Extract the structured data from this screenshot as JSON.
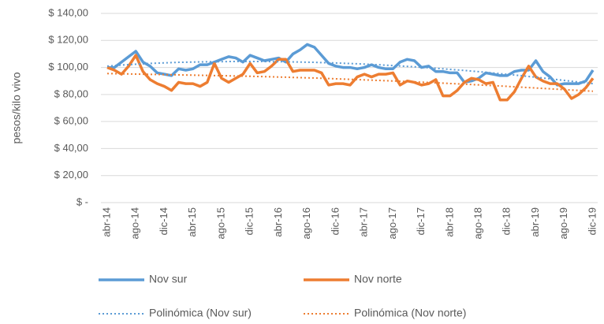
{
  "chart_data": {
    "type": "line",
    "y_label": "pesos/kilo vivo",
    "categories": [
      "abr-14",
      null,
      null,
      null,
      "ago-14",
      null,
      null,
      null,
      "dic-14",
      null,
      null,
      null,
      "abr-15",
      null,
      null,
      null,
      "ago-15",
      null,
      null,
      null,
      "dic-15",
      null,
      null,
      null,
      "abr-16",
      null,
      null,
      null,
      "ago-16",
      null,
      null,
      null,
      "dic-16",
      null,
      null,
      null,
      "abr-17",
      null,
      null,
      null,
      "ago-17",
      null,
      null,
      null,
      "dic-17",
      null,
      null,
      null,
      "abr-18",
      null,
      null,
      null,
      "ago-18",
      null,
      null,
      null,
      "dic-18",
      null,
      null,
      null,
      "abr-19",
      null,
      null,
      null,
      "ago-19",
      null,
      null,
      null,
      "dic-19"
    ],
    "ylim": [
      0,
      140
    ],
    "yticks": [
      {
        "value": 0,
        "label": "$ -"
      },
      {
        "value": 20,
        "label": "$ 20,00"
      },
      {
        "value": 40,
        "label": "$ 40,00"
      },
      {
        "value": 60,
        "label": "$ 60,00"
      },
      {
        "value": 80,
        "label": "$ 80,00"
      },
      {
        "value": 100,
        "label": "$ 100,00"
      },
      {
        "value": 120,
        "label": "$ 120,00"
      },
      {
        "value": 140,
        "label": "$ 140,00"
      }
    ],
    "grid": true,
    "legend": "bottom",
    "series": [
      {
        "name": "Nov sur",
        "color": "#5b9bd5",
        "line_style": "solid",
        "values": [
          100,
          100,
          104,
          108,
          112,
          104,
          101,
          96,
          95,
          94,
          99,
          98,
          99,
          102,
          102,
          104,
          106,
          108,
          107,
          104,
          109,
          107,
          105,
          106,
          107,
          104,
          110,
          113,
          117,
          115,
          109,
          103,
          101,
          100,
          100,
          99,
          100,
          102,
          100,
          99,
          99,
          104,
          106,
          105,
          100,
          101,
          97,
          97,
          96,
          96,
          89,
          90,
          92,
          96,
          95,
          94,
          94,
          97,
          98,
          98,
          105,
          97,
          93,
          87,
          88,
          88,
          88,
          90,
          98
        ]
      },
      {
        "name": "Nov norte",
        "color": "#ed7d31",
        "line_style": "solid",
        "values": [
          100,
          98,
          95,
          101,
          109,
          97,
          91,
          88,
          86,
          83,
          89,
          88,
          88,
          86,
          89,
          103,
          92,
          89,
          92,
          95,
          103,
          96,
          97,
          101,
          106,
          106,
          97,
          98,
          98,
          98,
          96,
          87,
          88,
          88,
          87,
          93,
          95,
          93,
          95,
          95,
          96,
          87,
          90,
          89,
          87,
          88,
          91,
          79,
          79,
          83,
          89,
          92,
          91,
          88,
          89,
          76,
          76,
          82,
          92,
          101,
          93,
          90,
          88,
          88,
          84,
          77,
          80,
          85,
          92
        ]
      },
      {
        "name": "Polinómica (Nov sur)",
        "color": "#5b9bd5",
        "line_style": "dotted",
        "values": [
          101,
          101.4,
          101.8,
          102.1,
          102.4,
          102.7,
          103,
          103.2,
          103.4,
          103.6,
          103.8,
          103.9,
          104,
          104.1,
          104.2,
          104.3,
          104.3,
          104.4,
          104.4,
          104.4,
          104.4,
          104.4,
          104.4,
          104.3,
          104.3,
          104.2,
          104.1,
          104,
          103.9,
          103.8,
          103.6,
          103.5,
          103.3,
          103.1,
          102.9,
          102.7,
          102.5,
          102.2,
          102,
          101.7,
          101.4,
          101.1,
          100.8,
          100.5,
          100.1,
          99.8,
          99.4,
          99,
          98.6,
          98.2,
          97.8,
          97.3,
          96.9,
          96.4,
          95.9,
          95.4,
          94.9,
          94.4,
          93.9,
          93.3,
          92.8,
          92.2,
          91.6,
          91,
          90.4,
          89.8,
          89.2,
          88.6,
          88
        ]
      },
      {
        "name": "Polinómica (Nov norte)",
        "color": "#ed7d31",
        "line_style": "dotted",
        "values": [
          95.5,
          95.4,
          95.3,
          95.2,
          95.1,
          95,
          94.9,
          94.8,
          94.7,
          94.6,
          94.5,
          94.4,
          94.3,
          94.2,
          94.1,
          94,
          93.9,
          93.8,
          93.7,
          93.6,
          93.5,
          93.3,
          93.2,
          93.1,
          92.9,
          92.8,
          92.6,
          92.5,
          92.3,
          92.2,
          92,
          91.8,
          91.6,
          91.4,
          91.2,
          91,
          90.8,
          90.6,
          90.4,
          90.2,
          90,
          89.8,
          89.6,
          89.3,
          89.1,
          88.9,
          88.6,
          88.4,
          88.1,
          87.9,
          87.6,
          87.4,
          87.1,
          86.8,
          86.6,
          86.3,
          86,
          85.7,
          85.4,
          85.1,
          84.8,
          84.5,
          84.2,
          83.9,
          83.6,
          83.3,
          83,
          82.7,
          82.4
        ]
      }
    ]
  }
}
